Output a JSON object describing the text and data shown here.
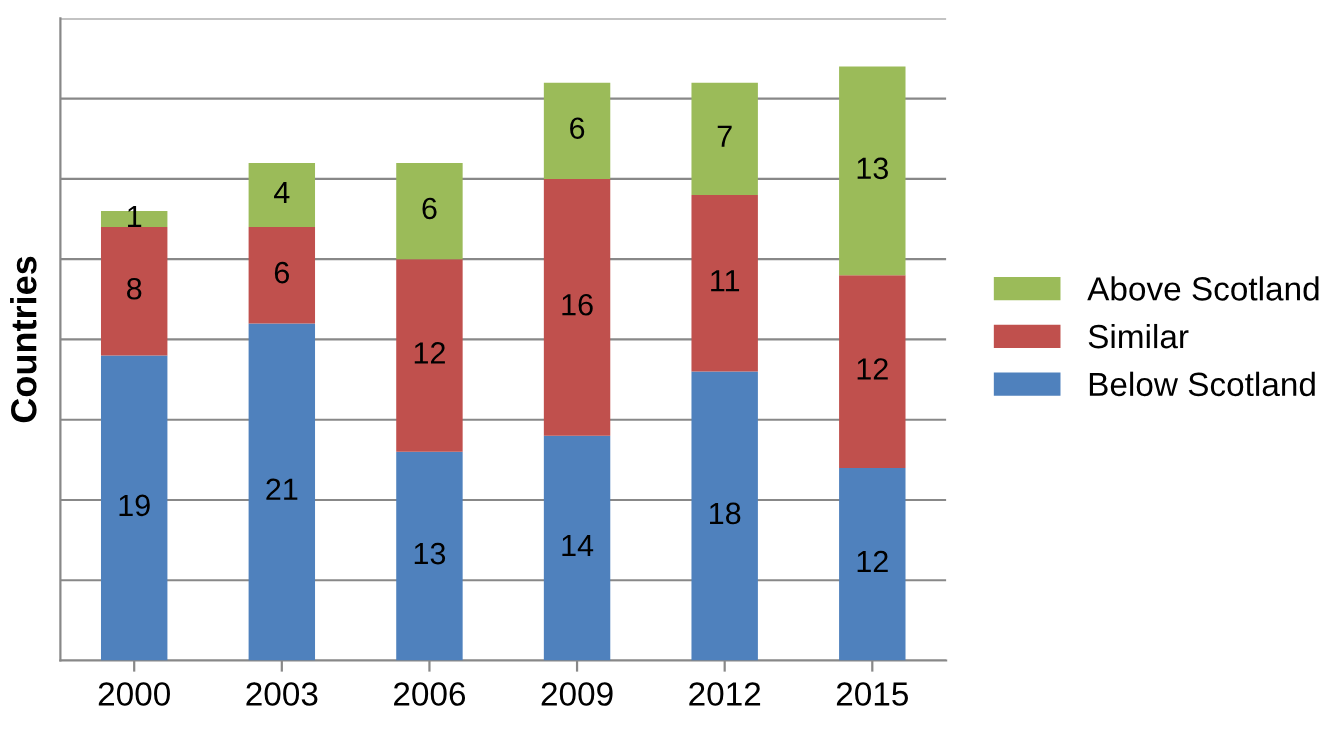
{
  "chart_data": {
    "type": "bar",
    "stacked": true,
    "ylabel": "Countries",
    "categories": [
      "2000",
      "2003",
      "2006",
      "2009",
      "2012",
      "2015"
    ],
    "series": [
      {
        "name": "Below Scotland",
        "color": "#4f81bd",
        "values": [
          19,
          21,
          13,
          14,
          18,
          12
        ]
      },
      {
        "name": "Similar",
        "color": "#c0504d",
        "values": [
          8,
          6,
          12,
          16,
          11,
          12
        ]
      },
      {
        "name": "Above Scotland",
        "color": "#9bbb59",
        "values": [
          1,
          4,
          6,
          6,
          7,
          13
        ]
      }
    ],
    "ylim": [
      0,
      40
    ],
    "yticks": [
      {
        "value": 0,
        "label": null
      },
      {
        "value": 5,
        "label": null
      },
      {
        "value": 10,
        "label": null
      },
      {
        "value": 15,
        "label": null
      },
      {
        "value": 20,
        "label": null
      },
      {
        "value": 25,
        "label": null
      },
      {
        "value": 30,
        "label": null
      },
      {
        "value": 35,
        "label": null
      },
      {
        "value": 40,
        "label": null
      }
    ],
    "tick_labels": "x",
    "grid": "y",
    "legend": "right",
    "data_labels": true
  }
}
